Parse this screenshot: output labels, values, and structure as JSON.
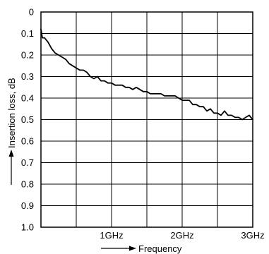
{
  "chart_data": {
    "type": "line",
    "title": "",
    "xlabel": "Frequency",
    "ylabel": "Insertion loss, dB",
    "xlim": [
      0,
      3
    ],
    "ylim": [
      0,
      1.0
    ],
    "y_inverted": true,
    "grid": true,
    "x_ticks": [
      {
        "value": 1,
        "label": "1GHz"
      },
      {
        "value": 2,
        "label": "2GHz"
      },
      {
        "value": 3,
        "label": "3GHz"
      }
    ],
    "y_ticks": [
      {
        "value": 0,
        "label": "0"
      },
      {
        "value": 0.1,
        "label": "0.1"
      },
      {
        "value": 0.2,
        "label": "0.2"
      },
      {
        "value": 0.3,
        "label": "0.3"
      },
      {
        "value": 0.4,
        "label": "0.4"
      },
      {
        "value": 0.5,
        "label": "0.5"
      },
      {
        "value": 0.6,
        "label": "0.6"
      },
      {
        "value": 0.7,
        "label": "0.7"
      },
      {
        "value": 0.8,
        "label": "0.8"
      },
      {
        "value": 0.9,
        "label": "0.9"
      },
      {
        "value": 1.0,
        "label": "1.0"
      }
    ],
    "x_grid": [
      0.5,
      1,
      1.5,
      2,
      2.5,
      3
    ],
    "series": [
      {
        "color": "#000000",
        "x": [
          0.0,
          0.02,
          0.05,
          0.1,
          0.15,
          0.2,
          0.25,
          0.3,
          0.35,
          0.4,
          0.45,
          0.5,
          0.55,
          0.6,
          0.65,
          0.7,
          0.75,
          0.8,
          0.85,
          0.9,
          0.95,
          1.0,
          1.05,
          1.1,
          1.15,
          1.2,
          1.25,
          1.3,
          1.35,
          1.4,
          1.45,
          1.5,
          1.55,
          1.6,
          1.65,
          1.7,
          1.75,
          1.8,
          1.85,
          1.9,
          1.95,
          2.0,
          2.05,
          2.1,
          2.15,
          2.2,
          2.25,
          2.3,
          2.35,
          2.4,
          2.45,
          2.5,
          2.55,
          2.6,
          2.65,
          2.7,
          2.75,
          2.8,
          2.85,
          2.9,
          2.95,
          3.0
        ],
        "y": [
          0.08,
          0.12,
          0.12,
          0.14,
          0.17,
          0.19,
          0.2,
          0.21,
          0.22,
          0.24,
          0.25,
          0.26,
          0.27,
          0.27,
          0.28,
          0.3,
          0.31,
          0.3,
          0.32,
          0.32,
          0.33,
          0.33,
          0.34,
          0.34,
          0.34,
          0.35,
          0.35,
          0.36,
          0.35,
          0.36,
          0.37,
          0.37,
          0.38,
          0.38,
          0.38,
          0.38,
          0.39,
          0.39,
          0.39,
          0.39,
          0.4,
          0.41,
          0.41,
          0.41,
          0.43,
          0.43,
          0.44,
          0.44,
          0.46,
          0.45,
          0.47,
          0.47,
          0.48,
          0.46,
          0.48,
          0.48,
          0.49,
          0.49,
          0.5,
          0.49,
          0.48,
          0.5
        ]
      }
    ],
    "legend": "none"
  }
}
